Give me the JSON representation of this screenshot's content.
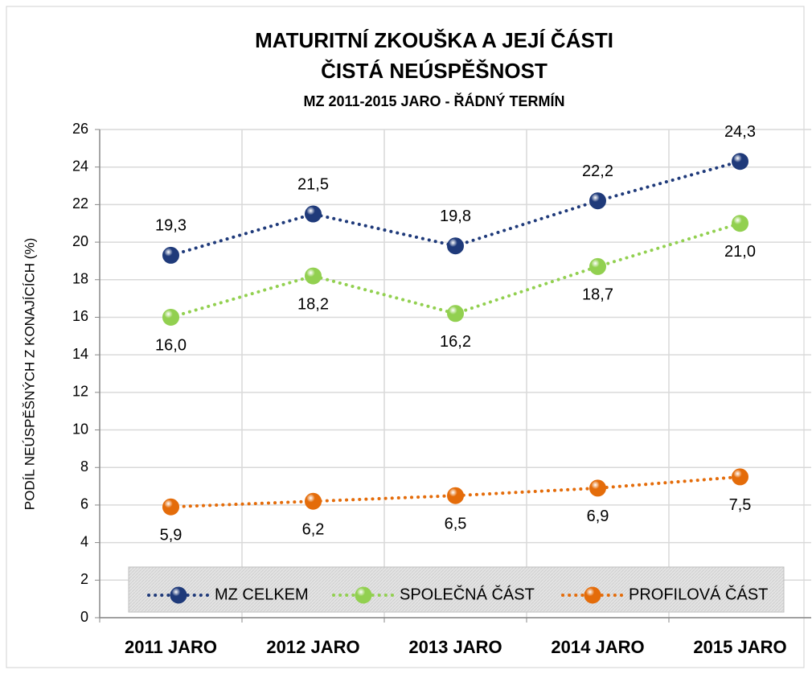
{
  "chart_data": {
    "type": "line",
    "title": [
      "MATURITNÍ ZKOUŠKA A JEJÍ ČÁSTI",
      "ČISTÁ NEÚSPĚŠNOST"
    ],
    "subtitle": "MZ 2011-2015 JARO - ŘÁDNÝ TERMÍN",
    "y_label": "PODÍL NEÚSPĚŠNÝCH Z KONAJÍCÍCH (%)",
    "categories": [
      "2011 JARO",
      "2012 JARO",
      "2013 JARO",
      "2014 JARO",
      "2015 JARO"
    ],
    "series": [
      {
        "name": "MZ CELKEM",
        "color": "#1f3a7a",
        "values": [
          19.3,
          21.5,
          19.8,
          22.2,
          24.3
        ],
        "value_labels": [
          "19,3",
          "21,5",
          "19,8",
          "22,2",
          "24,3"
        ]
      },
      {
        "name": "SPOLEČNÁ ČÁST",
        "color": "#92d050",
        "values": [
          16.0,
          18.2,
          16.2,
          18.7,
          21.0
        ],
        "value_labels": [
          "16,0",
          "18,2",
          "16,2",
          "18,7",
          "21,0"
        ]
      },
      {
        "name": "PROFILOVÁ ČÁST",
        "color": "#e46c0a",
        "values": [
          5.9,
          6.2,
          6.5,
          6.9,
          7.5
        ],
        "value_labels": [
          "5,9",
          "6,2",
          "6,5",
          "6,9",
          "7,5"
        ]
      }
    ],
    "ylim": [
      0,
      26
    ],
    "yticks": [
      0,
      2,
      4,
      6,
      8,
      10,
      12,
      14,
      16,
      18,
      20,
      22,
      24,
      26
    ],
    "grid": true,
    "legend": "bottom"
  }
}
